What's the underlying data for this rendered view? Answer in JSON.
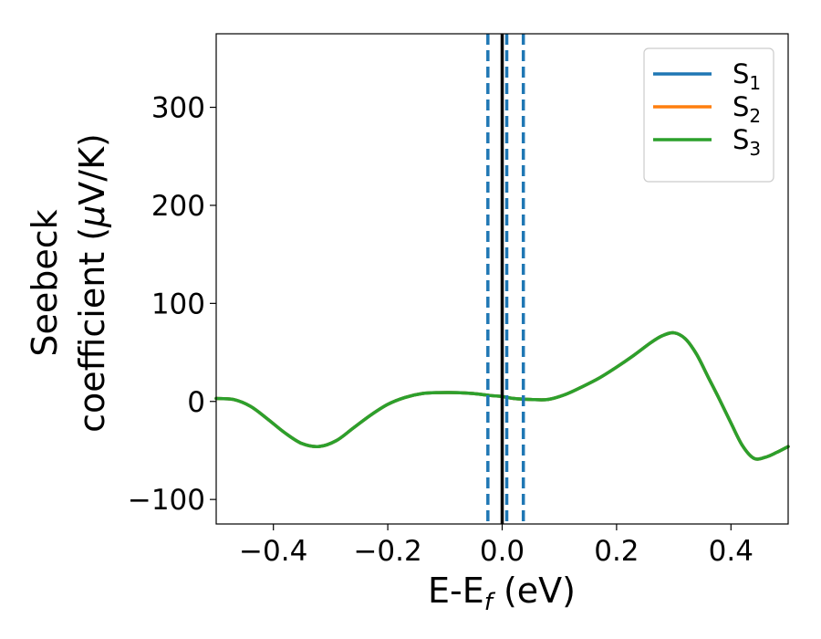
{
  "chart_data": {
    "type": "line",
    "xlabel": "E-E",
    "xlabel_sub": "f",
    "xlabel_unit": " (eV)",
    "ylabel_line1": "Seebeck",
    "ylabel_line2_a": "coefficient  (",
    "ylabel_line2_mu": "μ",
    "ylabel_line2_b": "V/K)",
    "xlim": [
      -0.5,
      0.5
    ],
    "ylim": [
      -125,
      375
    ],
    "x_ticks": [
      -0.4,
      -0.2,
      0.0,
      0.2,
      0.4
    ],
    "x_tick_labels": [
      "−0.4",
      "−0.2",
      "0.0",
      "0.2",
      "0.4"
    ],
    "y_ticks": [
      -100,
      0,
      100,
      200,
      300
    ],
    "y_tick_labels": [
      "−100",
      "0",
      "100",
      "200",
      "300"
    ],
    "fermi_line_x": 0.0,
    "dashed_lines_x": [
      -0.025,
      0.008,
      0.037
    ],
    "legend_position": "top-right",
    "series": [
      {
        "name": "S",
        "name_sub": "1",
        "color": "#1f77b4",
        "x": [
          -0.5,
          -0.47,
          -0.44,
          -0.41,
          -0.38,
          -0.35,
          -0.32,
          -0.29,
          -0.26,
          -0.23,
          -0.2,
          -0.17,
          -0.14,
          -0.11,
          -0.08,
          -0.05,
          -0.02,
          0.0,
          0.02,
          0.05,
          0.08,
          0.11,
          0.14,
          0.17,
          0.2,
          0.23,
          0.26,
          0.28,
          0.3,
          0.32,
          0.34,
          0.36,
          0.38,
          0.4,
          0.42,
          0.44,
          0.46,
          0.48,
          0.5
        ],
        "y": [
          3,
          2,
          -5,
          -18,
          -32,
          -43,
          -46,
          -40,
          -27,
          -14,
          -3,
          4,
          8,
          9,
          9,
          8,
          6,
          5,
          3,
          2,
          2,
          7,
          15,
          24,
          35,
          47,
          60,
          67,
          70,
          64,
          48,
          25,
          2,
          -22,
          -45,
          -58,
          -57,
          -52,
          -46
        ]
      },
      {
        "name": "S",
        "name_sub": "2",
        "color": "#ff7f0e",
        "x": [
          -0.5,
          -0.47,
          -0.44,
          -0.41,
          -0.38,
          -0.35,
          -0.32,
          -0.29,
          -0.26,
          -0.23,
          -0.2,
          -0.17,
          -0.14,
          -0.11,
          -0.08,
          -0.05,
          -0.02,
          0.0,
          0.02,
          0.05,
          0.08,
          0.11,
          0.14,
          0.17,
          0.2,
          0.23,
          0.26,
          0.28,
          0.3,
          0.32,
          0.34,
          0.36,
          0.38,
          0.4,
          0.42,
          0.44,
          0.46,
          0.48,
          0.5
        ],
        "y": [
          3,
          2,
          -5,
          -18,
          -32,
          -43,
          -46,
          -40,
          -27,
          -14,
          -3,
          4,
          8,
          9,
          9,
          8,
          6,
          5,
          3,
          2,
          2,
          7,
          15,
          24,
          35,
          47,
          60,
          67,
          70,
          64,
          48,
          25,
          2,
          -22,
          -45,
          -58,
          -57,
          -52,
          -46
        ]
      },
      {
        "name": "S",
        "name_sub": "3",
        "color": "#2ca02c",
        "x": [
          -0.5,
          -0.47,
          -0.44,
          -0.41,
          -0.38,
          -0.35,
          -0.32,
          -0.29,
          -0.26,
          -0.23,
          -0.2,
          -0.17,
          -0.14,
          -0.11,
          -0.08,
          -0.05,
          -0.02,
          0.0,
          0.02,
          0.05,
          0.08,
          0.11,
          0.14,
          0.17,
          0.2,
          0.23,
          0.26,
          0.28,
          0.3,
          0.32,
          0.34,
          0.36,
          0.38,
          0.4,
          0.42,
          0.44,
          0.46,
          0.48,
          0.5
        ],
        "y": [
          3,
          2,
          -5,
          -18,
          -32,
          -43,
          -46,
          -40,
          -27,
          -14,
          -3,
          4,
          8,
          9,
          9,
          8,
          6,
          5,
          3,
          2,
          2,
          7,
          15,
          24,
          35,
          47,
          60,
          67,
          70,
          64,
          48,
          25,
          2,
          -22,
          -45,
          -58,
          -57,
          -52,
          -46
        ]
      }
    ]
  },
  "colors": {
    "dashed_line": "#1f77b4",
    "fermi_line": "#000000"
  }
}
